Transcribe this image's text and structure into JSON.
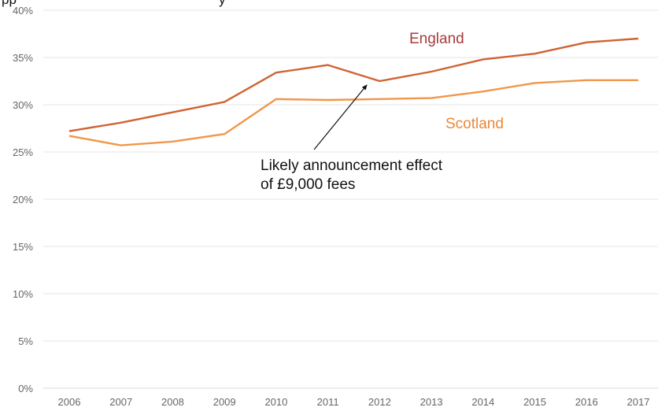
{
  "chart_data": {
    "type": "line",
    "title_fragment": "pp",
    "title_fragment_2": "y",
    "x": [
      "2006",
      "2007",
      "2008",
      "2009",
      "2010",
      "2011",
      "2012",
      "2013",
      "2014",
      "2015",
      "2016",
      "2017"
    ],
    "ylim": [
      0,
      40
    ],
    "yticks": [
      "0%",
      "5%",
      "10%",
      "15%",
      "20%",
      "25%",
      "30%",
      "35%",
      "40%"
    ],
    "grid": true,
    "series": [
      {
        "name": "England",
        "color": "#d06333",
        "label_color": "#a83c3c",
        "values": [
          27.2,
          28.1,
          29.2,
          30.3,
          33.4,
          34.2,
          32.5,
          33.5,
          34.8,
          35.4,
          36.6,
          37.0
        ]
      },
      {
        "name": "Scotland",
        "color": "#f0974a",
        "label_color": "#e8893a",
        "values": [
          26.7,
          25.7,
          26.1,
          26.9,
          30.6,
          30.5,
          30.6,
          30.7,
          31.4,
          32.3,
          32.6,
          32.6
        ]
      }
    ],
    "annotation": {
      "line1": "Likely announcement effect",
      "line2": "of £9,000 fees",
      "points_to_year": "2012",
      "points_to_value": 32.5
    }
  }
}
